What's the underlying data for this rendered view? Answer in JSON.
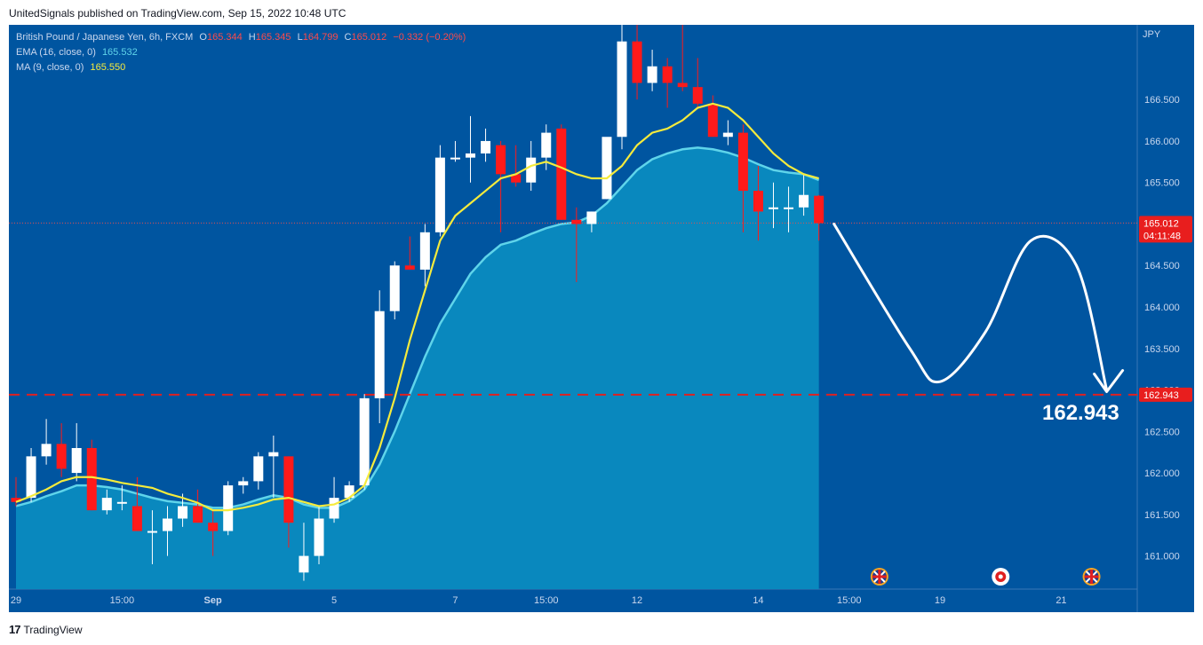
{
  "header": {
    "publisher": "UnitedSignals published on TradingView.com, Sep 15, 2022 10:48 UTC"
  },
  "legend": {
    "symbol": "British Pound / Japanese Yen, 6h, FXCM",
    "o_label": "O",
    "o": "165.344",
    "h_label": "H",
    "h": "165.345",
    "l_label": "L",
    "l": "164.799",
    "c_label": "C",
    "c": "165.012",
    "change": "−0.332 (−0.20%)",
    "ema_label": "EMA (16, close, 0)",
    "ema_value": "165.532",
    "ma_label": "MA (9, close, 0)",
    "ma_value": "165.550"
  },
  "footer": {
    "brand": "TradingView"
  },
  "colors": {
    "background": "#0055a0",
    "area": "#0a8bc0",
    "up_candle": "#ffffff",
    "down_candle": "#ff1a1a",
    "ema": "#5fd4ea",
    "ma": "#f5eb3c",
    "target_line": "#e02020"
  },
  "chart_data": {
    "type": "candlestick",
    "currency_label": "JPY",
    "ylim": [
      160.6,
      167.4
    ],
    "y_ticks": [
      "161.000",
      "161.500",
      "162.000",
      "162.500",
      "163.000",
      "163.500",
      "164.000",
      "164.500",
      "165.000",
      "165.500",
      "166.000",
      "166.500"
    ],
    "x_ticks": [
      {
        "label": "29",
        "index": 0
      },
      {
        "label": "15:00",
        "index": 7
      },
      {
        "label": "Sep",
        "index": 13
      },
      {
        "label": "5",
        "index": 21
      },
      {
        "label": "7",
        "index": 29
      },
      {
        "label": "15:00",
        "index": 35
      },
      {
        "label": "12",
        "index": 41
      },
      {
        "label": "14",
        "index": 49
      },
      {
        "label": "15:00",
        "index": 55
      },
      {
        "label": "19",
        "index": 61
      },
      {
        "label": "21",
        "index": 69
      }
    ],
    "candles": [
      {
        "o": 161.7,
        "h": 161.95,
        "l": 161.6,
        "c": 161.65
      },
      {
        "o": 161.7,
        "h": 162.3,
        "l": 161.65,
        "c": 162.2
      },
      {
        "o": 162.2,
        "h": 162.65,
        "l": 162.1,
        "c": 162.35
      },
      {
        "o": 162.35,
        "h": 162.6,
        "l": 161.95,
        "c": 162.05
      },
      {
        "o": 162.0,
        "h": 162.6,
        "l": 161.9,
        "c": 162.3
      },
      {
        "o": 162.3,
        "h": 162.4,
        "l": 161.55,
        "c": 161.55
      },
      {
        "o": 161.55,
        "h": 161.8,
        "l": 161.5,
        "c": 161.7
      },
      {
        "o": 161.65,
        "h": 161.85,
        "l": 161.55,
        "c": 161.65
      },
      {
        "o": 161.6,
        "h": 161.95,
        "l": 161.3,
        "c": 161.3
      },
      {
        "o": 161.3,
        "h": 161.55,
        "l": 160.9,
        "c": 161.3
      },
      {
        "o": 161.3,
        "h": 161.6,
        "l": 161.0,
        "c": 161.45
      },
      {
        "o": 161.45,
        "h": 161.75,
        "l": 161.35,
        "c": 161.6
      },
      {
        "o": 161.6,
        "h": 161.8,
        "l": 161.4,
        "c": 161.4
      },
      {
        "o": 161.4,
        "h": 161.55,
        "l": 161.0,
        "c": 161.3
      },
      {
        "o": 161.3,
        "h": 161.9,
        "l": 161.25,
        "c": 161.85
      },
      {
        "o": 161.85,
        "h": 161.95,
        "l": 161.75,
        "c": 161.9
      },
      {
        "o": 161.9,
        "h": 162.25,
        "l": 161.8,
        "c": 162.2
      },
      {
        "o": 162.2,
        "h": 162.45,
        "l": 161.7,
        "c": 162.25
      },
      {
        "o": 162.2,
        "h": 162.2,
        "l": 161.1,
        "c": 161.4
      },
      {
        "o": 160.8,
        "h": 161.4,
        "l": 160.7,
        "c": 161.0
      },
      {
        "o": 161.0,
        "h": 161.6,
        "l": 160.9,
        "c": 161.45
      },
      {
        "o": 161.45,
        "h": 161.95,
        "l": 161.4,
        "c": 161.7
      },
      {
        "o": 161.7,
        "h": 161.9,
        "l": 161.65,
        "c": 161.85
      },
      {
        "o": 161.85,
        "h": 162.95,
        "l": 161.8,
        "c": 162.9
      },
      {
        "o": 162.9,
        "h": 164.2,
        "l": 162.6,
        "c": 163.95
      },
      {
        "o": 163.95,
        "h": 164.55,
        "l": 163.85,
        "c": 164.5
      },
      {
        "o": 164.5,
        "h": 164.85,
        "l": 164.45,
        "c": 164.45
      },
      {
        "o": 164.45,
        "h": 165.0,
        "l": 164.25,
        "c": 164.9
      },
      {
        "o": 164.9,
        "h": 165.95,
        "l": 164.85,
        "c": 165.8
      },
      {
        "o": 165.8,
        "h": 166.0,
        "l": 165.75,
        "c": 165.8
      },
      {
        "o": 165.8,
        "h": 166.3,
        "l": 165.5,
        "c": 165.85
      },
      {
        "o": 165.85,
        "h": 166.15,
        "l": 165.75,
        "c": 166.0
      },
      {
        "o": 165.95,
        "h": 166.0,
        "l": 164.9,
        "c": 165.6
      },
      {
        "o": 165.6,
        "h": 165.95,
        "l": 165.45,
        "c": 165.5
      },
      {
        "o": 165.5,
        "h": 166.0,
        "l": 165.4,
        "c": 165.8
      },
      {
        "o": 165.8,
        "h": 166.2,
        "l": 165.65,
        "c": 166.1
      },
      {
        "o": 166.15,
        "h": 166.2,
        "l": 165.05,
        "c": 165.05
      },
      {
        "o": 165.05,
        "h": 165.2,
        "l": 164.3,
        "c": 165.0
      },
      {
        "o": 165.0,
        "h": 165.15,
        "l": 164.9,
        "c": 165.15
      },
      {
        "o": 165.3,
        "h": 166.0,
        "l": 165.3,
        "c": 166.05
      },
      {
        "o": 166.05,
        "h": 167.4,
        "l": 165.9,
        "c": 167.2
      },
      {
        "o": 167.2,
        "h": 167.6,
        "l": 166.5,
        "c": 166.7
      },
      {
        "o": 166.7,
        "h": 167.1,
        "l": 166.6,
        "c": 166.9
      },
      {
        "o": 166.9,
        "h": 167.0,
        "l": 166.4,
        "c": 166.7
      },
      {
        "o": 166.7,
        "h": 167.4,
        "l": 166.6,
        "c": 166.65
      },
      {
        "o": 166.65,
        "h": 167.0,
        "l": 166.4,
        "c": 166.45
      },
      {
        "o": 166.45,
        "h": 166.55,
        "l": 166.05,
        "c": 166.05
      },
      {
        "o": 166.05,
        "h": 166.25,
        "l": 165.95,
        "c": 166.1
      },
      {
        "o": 166.1,
        "h": 166.2,
        "l": 164.9,
        "c": 165.4
      },
      {
        "o": 165.4,
        "h": 165.7,
        "l": 164.8,
        "c": 165.15
      },
      {
        "o": 165.2,
        "h": 165.5,
        "l": 164.95,
        "c": 165.2
      },
      {
        "o": 165.2,
        "h": 165.45,
        "l": 164.9,
        "c": 165.2
      },
      {
        "o": 165.2,
        "h": 165.6,
        "l": 165.1,
        "c": 165.35
      },
      {
        "o": 165.34,
        "h": 165.35,
        "l": 164.8,
        "c": 165.01
      }
    ],
    "ema_values": [
      161.6,
      161.65,
      161.72,
      161.78,
      161.85,
      161.85,
      161.83,
      161.8,
      161.75,
      161.7,
      161.66,
      161.64,
      161.62,
      161.58,
      161.58,
      161.62,
      161.68,
      161.73,
      161.7,
      161.62,
      161.58,
      161.58,
      161.66,
      161.8,
      162.1,
      162.5,
      162.95,
      163.4,
      163.8,
      164.1,
      164.4,
      164.6,
      164.75,
      164.8,
      164.88,
      164.95,
      165.0,
      165.02,
      165.1,
      165.25,
      165.45,
      165.65,
      165.78,
      165.85,
      165.9,
      165.92,
      165.9,
      165.86,
      165.8,
      165.72,
      165.65,
      165.62,
      165.6,
      165.53
    ],
    "ma_values": [
      161.65,
      161.72,
      161.8,
      161.9,
      161.95,
      161.95,
      161.92,
      161.88,
      161.85,
      161.82,
      161.75,
      161.7,
      161.64,
      161.55,
      161.55,
      161.58,
      161.62,
      161.68,
      161.7,
      161.65,
      161.6,
      161.62,
      161.7,
      161.85,
      162.3,
      162.9,
      163.6,
      164.2,
      164.8,
      165.1,
      165.25,
      165.4,
      165.55,
      165.6,
      165.7,
      165.75,
      165.68,
      165.6,
      165.55,
      165.55,
      165.7,
      165.95,
      166.1,
      166.15,
      166.25,
      166.4,
      166.45,
      166.4,
      166.25,
      166.05,
      165.85,
      165.7,
      165.6,
      165.55
    ],
    "current_price_label": "165.012",
    "countdown_label": "04:11:48",
    "current_price": 165.012,
    "target_price": 162.943,
    "target_price_label": "162.943",
    "target_annotation": "162.943",
    "projection_path": [
      {
        "i": 54,
        "p": 165.0
      },
      {
        "i": 59,
        "p": 163.5
      },
      {
        "i": 61,
        "p": 163.1
      },
      {
        "i": 64,
        "p": 163.7
      },
      {
        "i": 67,
        "p": 164.8
      },
      {
        "i": 70,
        "p": 164.5
      },
      {
        "i": 72,
        "p": 163.0
      }
    ],
    "event_markers": [
      {
        "name": "gb-flag-icon",
        "index": 57
      },
      {
        "name": "target-circle-icon",
        "index": 65
      },
      {
        "name": "gb-flag-icon",
        "index": 71
      }
    ]
  }
}
